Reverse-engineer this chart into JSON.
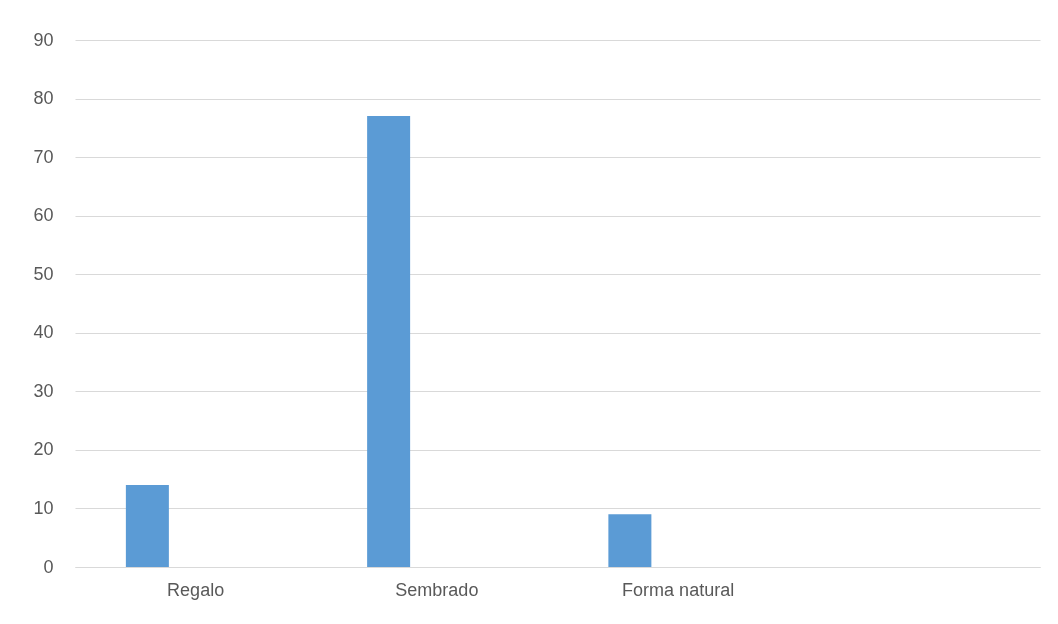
{
  "chart_data": {
    "type": "bar",
    "categories": [
      "Regalo",
      "Sembrado",
      "Forma natural",
      null
    ],
    "values": [
      14,
      77,
      9,
      null
    ],
    "color": "#5b9bd5",
    "ylim": [
      0,
      90
    ],
    "yticks": [
      0,
      10,
      20,
      30,
      40,
      50,
      60,
      70,
      80,
      90
    ],
    "grid": "y"
  }
}
